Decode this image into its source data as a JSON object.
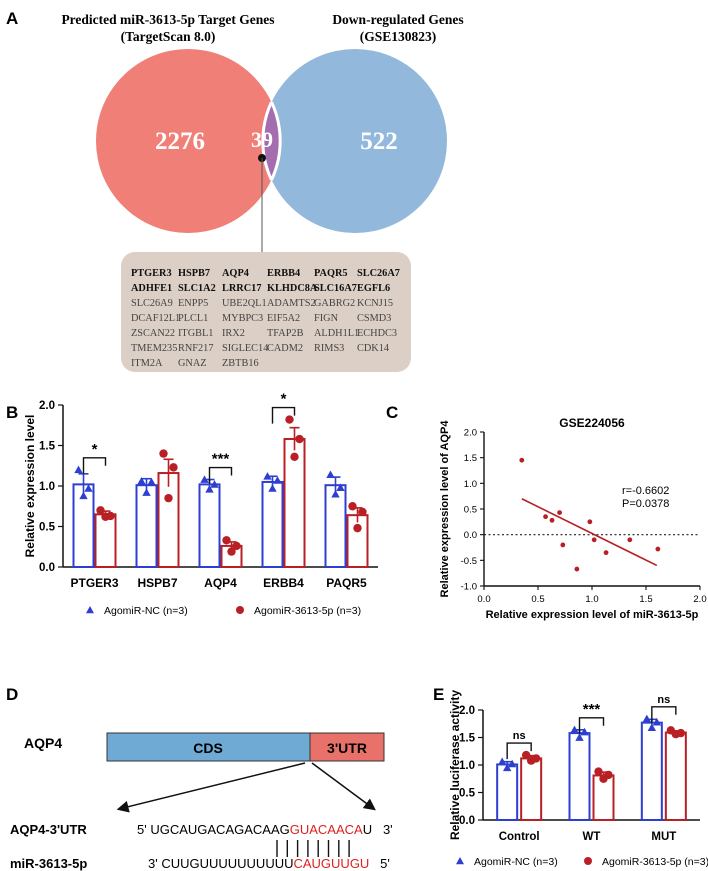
{
  "panels": {
    "a": "A",
    "b": "B",
    "c": "C",
    "d": "D",
    "e": "E"
  },
  "venn": {
    "left_title_1": "Predicted miR-3613-5p Target Genes",
    "left_title_2": "(TargetScan 8.0)",
    "right_title_1": "Down-regulated Genes",
    "right_title_2": "(GSE130823)",
    "left_count": "2276",
    "overlap_count": "39",
    "right_count": "522",
    "left_color": "#f07f77",
    "right_color": "#92b9dc",
    "overlap_color": "#a36db0",
    "gene_box_color": "#dccfc5",
    "gene_rows": [
      [
        "PTGER3",
        "HSPB7",
        "AQP4",
        "ERBB4",
        "PAQR5",
        "SLC26A7"
      ],
      [
        "ADHFE1",
        "SLC1A2",
        "LRRC17",
        "KLHDC8A",
        "SLC16A7",
        "EGFL6"
      ],
      [
        "SLC26A9",
        "ENPP5",
        "UBE2QL1",
        "ADAMTS2",
        "GABRG2",
        "KCNJ15"
      ],
      [
        "DCAF12L1",
        "PLCL1",
        "MYBPC3",
        "EIF5A2",
        "FIGN",
        "CSMD3"
      ],
      [
        "ZSCAN22",
        "ITGBL1",
        "IRX2",
        "TFAP2B",
        "ALDH1L1",
        "ECHDC3"
      ],
      [
        "TMEM235",
        "RNF217",
        "SIGLEC14",
        "CADM2",
        "RIMS3",
        "CDK14"
      ],
      [
        "ITM2A",
        "GNAZ",
        "ZBTB16",
        "",
        "",
        ""
      ]
    ]
  },
  "chart_data": [
    {
      "panel": "B",
      "type": "bar",
      "ylabel": "Relative expression level",
      "ylim": [
        0,
        2.0
      ],
      "yticks": [
        "0.0",
        "0.5",
        "1.0",
        "1.5",
        "2.0"
      ],
      "categories": [
        "PTGER3",
        "HSPB7",
        "AQP4",
        "ERBB4",
        "PAQR5"
      ],
      "series": [
        {
          "name": "AgomiR-NC (n=3)",
          "color": "#2d3fd0",
          "marker": "triangle",
          "values": [
            1.02,
            1.01,
            1.02,
            1.05,
            1.01
          ],
          "errors": [
            0.13,
            0.08,
            0.06,
            0.07,
            0.1
          ],
          "points": [
            [
              1.2,
              0.88,
              0.97
            ],
            [
              1.06,
              0.92,
              1.05
            ],
            [
              1.08,
              0.96,
              1.02
            ],
            [
              1.12,
              0.97,
              1.07
            ],
            [
              1.14,
              0.9,
              0.98
            ]
          ]
        },
        {
          "name": "AgomiR-3613-5p (n=3)",
          "color": "#b82025",
          "marker": "circle",
          "values": [
            0.65,
            1.16,
            0.26,
            1.58,
            0.64
          ],
          "errors": [
            0.04,
            0.17,
            0.05,
            0.14,
            0.09
          ],
          "points": [
            [
              0.7,
              0.62,
              0.63
            ],
            [
              1.4,
              0.85,
              1.23
            ],
            [
              0.33,
              0.19,
              0.26
            ],
            [
              1.82,
              1.36,
              1.58
            ],
            [
              0.75,
              0.48,
              0.68
            ]
          ]
        }
      ],
      "significance": [
        {
          "category": "PTGER3",
          "label": "*"
        },
        {
          "category": "AQP4",
          "label": "***"
        },
        {
          "category": "ERBB4",
          "label": "*"
        }
      ]
    },
    {
      "panel": "C",
      "type": "scatter",
      "title": "GSE224056",
      "xlabel": "Relative expression level of miR-3613-5p",
      "ylabel": "Relative expression level of AQP4",
      "xlim": [
        0.0,
        2.0
      ],
      "ylim": [
        -1.0,
        2.0
      ],
      "xticks": [
        "0.0",
        "0.5",
        "1.0",
        "1.5",
        "2.0"
      ],
      "yticks": [
        "-1.0",
        "-0.5",
        "0.0",
        "0.5",
        "1.0",
        "1.5",
        "2.0"
      ],
      "x": [
        0.35,
        0.57,
        0.63,
        0.7,
        0.73,
        0.86,
        0.98,
        1.02,
        1.13,
        1.35,
        1.61
      ],
      "y": [
        1.45,
        0.35,
        0.28,
        0.43,
        -0.2,
        -0.67,
        0.25,
        -0.1,
        -0.35,
        -0.1,
        -0.28
      ],
      "fit_line": {
        "x": [
          0.35,
          1.6
        ],
        "y": [
          0.7,
          -0.6
        ]
      },
      "annotations": [
        "r=-0.6602",
        "P=0.0378"
      ],
      "point_color": "#b82025"
    },
    {
      "panel": "E",
      "type": "bar",
      "ylabel": "Relative luciferase activity",
      "ylim": [
        0,
        2.0
      ],
      "yticks": [
        "0.0",
        "0.5",
        "1.0",
        "1.5",
        "2.0"
      ],
      "categories": [
        "Control",
        "WT",
        "MUT"
      ],
      "series": [
        {
          "name": "AgomiR-NC (n=3)",
          "color": "#2d3fd0",
          "marker": "triangle",
          "values": [
            1.01,
            1.58,
            1.77
          ],
          "errors": [
            0.05,
            0.06,
            0.06
          ],
          "points": [
            [
              1.06,
              0.95,
              1.02
            ],
            [
              1.64,
              1.5,
              1.6
            ],
            [
              1.84,
              1.68,
              1.78
            ]
          ]
        },
        {
          "name": "AgomiR-3613-5p (n=3)",
          "color": "#b82025",
          "marker": "circle",
          "values": [
            1.12,
            0.81,
            1.59
          ],
          "errors": [
            0.05,
            0.06,
            0.03
          ],
          "points": [
            [
              1.18,
              1.08,
              1.12
            ],
            [
              0.88,
              0.75,
              0.82
            ],
            [
              1.63,
              1.56,
              1.58
            ]
          ]
        }
      ],
      "significance": [
        {
          "category": "Control",
          "label": "ns"
        },
        {
          "category": "WT",
          "label": "***"
        },
        {
          "category": "MUT",
          "label": "ns"
        }
      ]
    }
  ],
  "diagram_d": {
    "gene": "AQP4",
    "cds_label": "CDS",
    "utr_label": "3'UTR",
    "cds_color": "#6faad4",
    "utr_color": "#e8716a",
    "row1_label": "AQP4-3'UTR",
    "row1_prefix": "5' UGCAUGACAGACAAG",
    "row1_seed": "GUACAACA",
    "row1_suffix": "U   3'",
    "row2_label": "miR-3613-5p",
    "row2_prefix": "3' CUUGUUUUUUUUUU",
    "row2_seed": "CAUGUUGU",
    "row2_suffix": "   5'",
    "seed_color": "#e02020"
  }
}
